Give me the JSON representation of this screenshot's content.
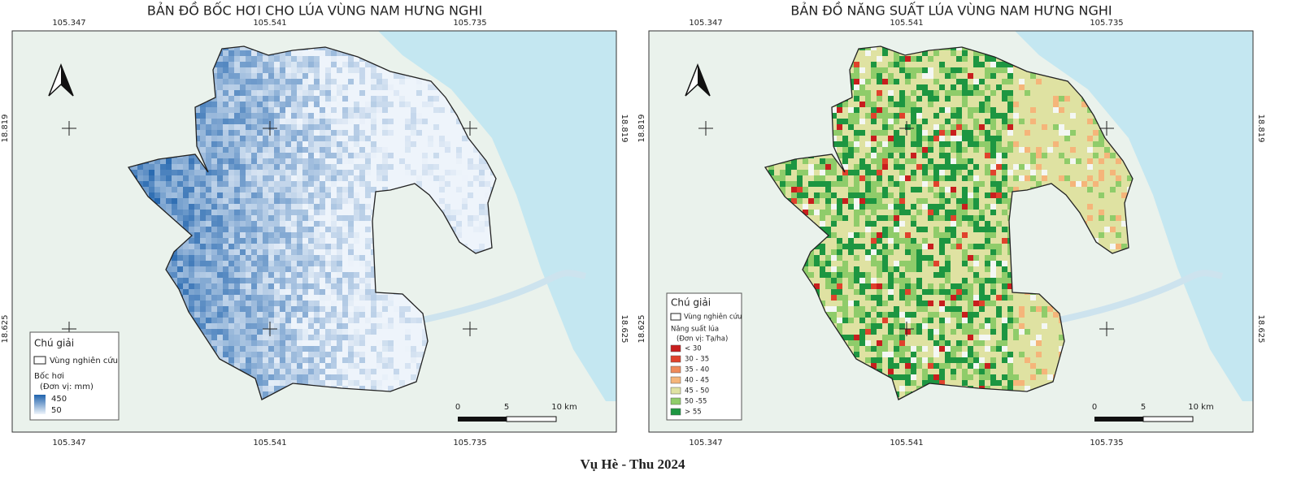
{
  "footer": "Vụ Hè - Thu 2024",
  "maps": [
    {
      "title": "BẢN ĐỒ BỐC HƠI CHO LÚA VÙNG NAM HƯNG NGHI",
      "lon_labels": [
        105.347,
        105.541,
        105.735
      ],
      "lat_labels": [
        18.819,
        18.625
      ],
      "legend": {
        "title": "Chú giải",
        "boundary": "Vùng nghiên cứu",
        "variable": "Bốc hơi",
        "unit": "(Đơn vị: mm)",
        "ramp_max": 450,
        "ramp_min": 50,
        "ramp_colors": [
          "#1f63ad",
          "#eef4fb"
        ]
      },
      "scale_labels": [
        "0",
        "5",
        "10 km"
      ]
    },
    {
      "title": "BẢN ĐỒ NĂNG SUẤT LÚA VÙNG NAM HƯNG NGHI",
      "lon_labels": [
        105.347,
        105.541,
        105.735
      ],
      "lat_labels": [
        18.819,
        18.625
      ],
      "legend": {
        "title": "Chú giải",
        "boundary": "Vùng nghiên cứu",
        "variable": "Năng suất lúa",
        "unit": "(Đơn vị: Tạ/ha)",
        "classes": [
          {
            "label": "< 30",
            "color": "#c81e1e"
          },
          {
            "label": "30 - 35",
            "color": "#e0422c"
          },
          {
            "label": "35 - 40",
            "color": "#ef8a5a"
          },
          {
            "label": "40 - 45",
            "color": "#f5b57a"
          },
          {
            "label": "45 - 50",
            "color": "#dfe2a2"
          },
          {
            "label": "50 -55",
            "color": "#8fcc6a"
          },
          {
            "label": "> 55",
            "color": "#1d9641"
          }
        ]
      },
      "scale_labels": [
        "0",
        "5",
        "10 km"
      ]
    }
  ]
}
